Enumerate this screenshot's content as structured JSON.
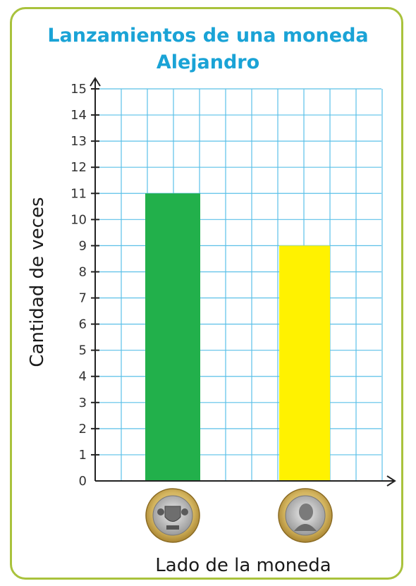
{
  "chart_data": {
    "type": "bar",
    "title": "Lanzamientos de una moneda",
    "subtitle": "Alejandro",
    "xlabel": "Lado de la moneda",
    "ylabel": "Cantidad de veces",
    "categories": [
      "",
      ""
    ],
    "category_icons": [
      "coin-heads-icon",
      "coin-tails-icon"
    ],
    "values": [
      11,
      9
    ],
    "colors": [
      "#22b04b",
      "#fff200"
    ],
    "ylim": [
      0,
      15
    ],
    "yticks": [
      "0",
      "1",
      "2",
      "3",
      "4",
      "5",
      "6",
      "7",
      "8",
      "9",
      "10",
      "11",
      "12",
      "13",
      "14",
      "15"
    ],
    "grid": true,
    "grid_color": "#5bc0e8",
    "border_color": "#a9c23c"
  }
}
